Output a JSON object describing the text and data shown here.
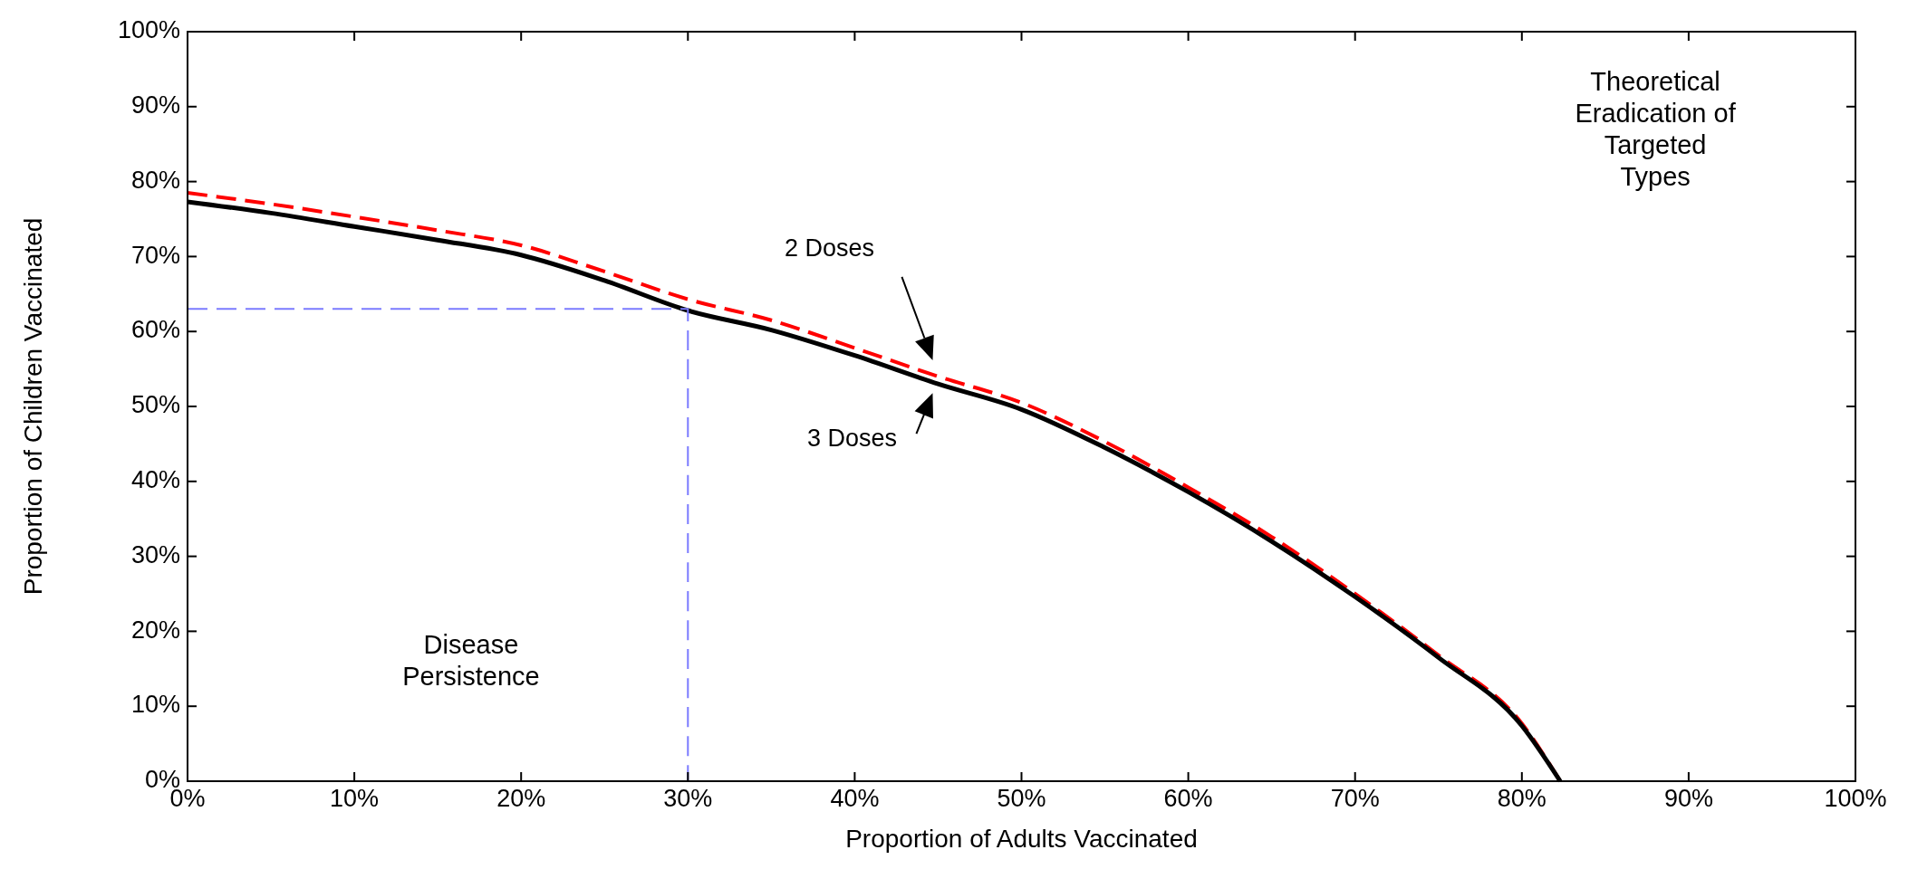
{
  "chart_data": {
    "type": "line",
    "xlabel": "Proportion of Adults Vaccinated",
    "ylabel": "Proportion of Children Vaccinated",
    "xlim": [
      0,
      100
    ],
    "ylim": [
      0,
      100
    ],
    "xticks": [
      {
        "value": 0,
        "label": "0%"
      },
      {
        "value": 10,
        "label": "10%"
      },
      {
        "value": 20,
        "label": "20%"
      },
      {
        "value": 30,
        "label": "30%"
      },
      {
        "value": 40,
        "label": "40%"
      },
      {
        "value": 50,
        "label": "50%"
      },
      {
        "value": 60,
        "label": "60%"
      },
      {
        "value": 70,
        "label": "70%"
      },
      {
        "value": 80,
        "label": "80%"
      },
      {
        "value": 90,
        "label": "90%"
      },
      {
        "value": 100,
        "label": "100%"
      }
    ],
    "yticks": [
      {
        "value": 0,
        "label": "0%"
      },
      {
        "value": 10,
        "label": "10%"
      },
      {
        "value": 20,
        "label": "20%"
      },
      {
        "value": 30,
        "label": "30%"
      },
      {
        "value": 40,
        "label": "40%"
      },
      {
        "value": 50,
        "label": "50%"
      },
      {
        "value": 60,
        "label": "60%"
      },
      {
        "value": 70,
        "label": "70%"
      },
      {
        "value": 80,
        "label": "80%"
      },
      {
        "value": 90,
        "label": "90%"
      },
      {
        "value": 100,
        "label": "100%"
      }
    ],
    "grid": false,
    "marker": "none",
    "series": [
      {
        "name": "2 Doses",
        "color": "#ff0000",
        "line_style": "dashed",
        "x": [
          0,
          5,
          10,
          15,
          20,
          25,
          30,
          35,
          40,
          45,
          50,
          55,
          60,
          65,
          70,
          75,
          80,
          82.3
        ],
        "values": [
          78.5,
          77,
          75.3,
          73.5,
          71.5,
          68,
          64.3,
          61.5,
          57.8,
          54,
          50.5,
          45.3,
          39.2,
          32.6,
          25,
          16.8,
          7.7,
          0
        ]
      },
      {
        "name": "3 Doses",
        "color": "#000000",
        "line_style": "solid",
        "x": [
          0,
          5,
          10,
          15,
          20,
          25,
          30,
          35,
          40,
          45,
          50,
          55,
          60,
          65,
          70,
          75,
          80,
          82.3
        ],
        "values": [
          77.3,
          75.8,
          74,
          72.2,
          70.2,
          66.8,
          62.8,
          60.2,
          56.8,
          53,
          49.6,
          44.5,
          38.6,
          32,
          24.6,
          16.5,
          7.4,
          0
        ]
      },
      {
        "color": "#7b7bff",
        "line_style": "dashed",
        "x": [
          0,
          30,
          30
        ],
        "values": [
          63,
          63,
          0
        ]
      }
    ],
    "annotations": [
      "Theoretical\nEradication of\nTargeted\nTypes",
      "Disease\nPersistence"
    ]
  }
}
